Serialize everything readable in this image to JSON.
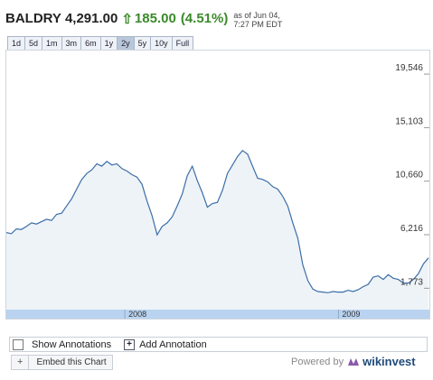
{
  "header": {
    "symbol": "BALDRY",
    "price": "4,291.00",
    "arrow_icon": "up-arrow-icon",
    "change": "185.00",
    "percent": "(4.51%)",
    "asof_line1": "as of Jun 04,",
    "asof_line2": "7:27 PM EDT",
    "up_color": "#3a8a2a"
  },
  "ranges": [
    {
      "label": "1d",
      "selected": false
    },
    {
      "label": "5d",
      "selected": false
    },
    {
      "label": "1m",
      "selected": false
    },
    {
      "label": "3m",
      "selected": false
    },
    {
      "label": "6m",
      "selected": false
    },
    {
      "label": "1y",
      "selected": false
    },
    {
      "label": "2y",
      "selected": true
    },
    {
      "label": "5y",
      "selected": false
    },
    {
      "label": "10y",
      "selected": false
    },
    {
      "label": "Full",
      "selected": false
    }
  ],
  "chart_data": {
    "type": "area",
    "y_ticks": [
      1773,
      6216,
      10660,
      15103,
      19546
    ],
    "y_tick_labels": [
      "1,773",
      "6,216",
      "10,660",
      "15,103",
      "19,546"
    ],
    "ylim": [
      0,
      21500
    ],
    "x_labels": [
      "2008",
      "2009"
    ],
    "grid": false,
    "line_color": "#3c6ea8",
    "fill_color": "#eef3f7",
    "timeline_color": "#b9d3f0",
    "series": [
      {
        "values": [
          6400,
          6300,
          6700,
          6650,
          6900,
          7200,
          7100,
          7300,
          7500,
          7400,
          7900,
          8000,
          8600,
          9200,
          10000,
          10800,
          11300,
          11600,
          12100,
          11900,
          12300,
          12000,
          12100,
          11700,
          11500,
          11200,
          11000,
          10400,
          9000,
          7800,
          6200,
          6900,
          7200,
          7700,
          8600,
          9600,
          11100,
          11900,
          10700,
          9700,
          8500,
          8800,
          8900,
          9900,
          11300,
          12000,
          12700,
          13200,
          12900,
          11900,
          10900,
          10800,
          10600,
          10200,
          10000,
          9400,
          8600,
          7200,
          5900,
          3700,
          2400,
          1700,
          1500,
          1450,
          1400,
          1500,
          1450,
          1450,
          1600,
          1500,
          1650,
          1900,
          2100,
          2700,
          2800,
          2500,
          2900,
          2600,
          2500,
          2200,
          2200,
          2500,
          3000,
          3800,
          4291
        ]
      }
    ]
  },
  "annotations": {
    "show_label": "Show Annotations",
    "add_label": "Add Annotation"
  },
  "footer": {
    "embed_label": "Embed this Chart",
    "powered_by": "Powered by",
    "brand": "wikinvest",
    "brand_icon": "wikinvest-logo-icon",
    "plus_icon": "plus-icon"
  }
}
